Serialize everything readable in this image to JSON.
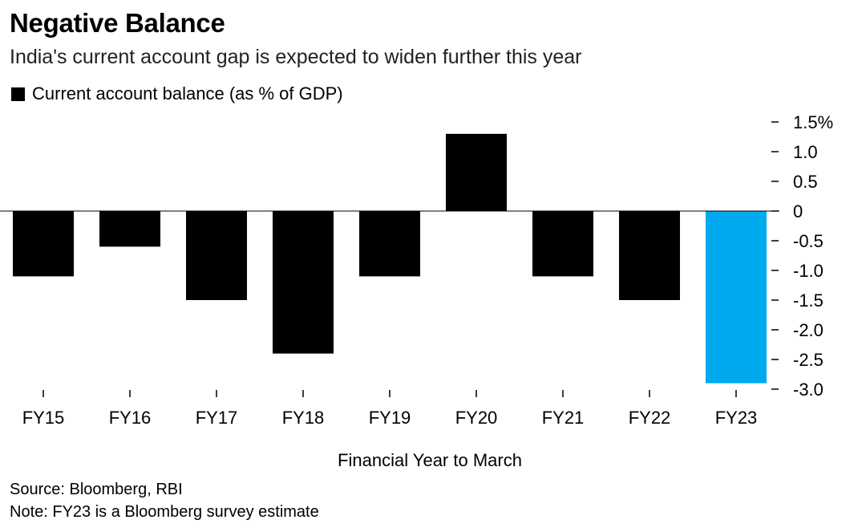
{
  "header": {
    "title": "Negative Balance",
    "subtitle": "India's current account gap is expected to widen further this year"
  },
  "legend": {
    "label": "Current account balance (as % of GDP)",
    "color": "#000000"
  },
  "chart_data": {
    "type": "bar",
    "title": "Negative Balance",
    "subtitle": "India's current account gap is expected to widen further this year",
    "categories": [
      "FY15",
      "FY16",
      "FY17",
      "FY18",
      "FY19",
      "FY20",
      "FY21",
      "FY22",
      "FY23"
    ],
    "values": [
      -1.1,
      -0.6,
      -1.5,
      -2.4,
      -1.1,
      1.3,
      -1.1,
      -1.5,
      -2.9
    ],
    "series": [
      {
        "name": "Current account balance (as % of GDP)",
        "values": [
          -1.1,
          -0.6,
          -1.5,
          -2.4,
          -1.1,
          1.3,
          -1.1,
          -1.5,
          -2.9
        ]
      }
    ],
    "bar_colors": [
      "#000000",
      "#000000",
      "#000000",
      "#000000",
      "#000000",
      "#000000",
      "#000000",
      "#000000",
      "#00aaee"
    ],
    "xlabel": "Financial Year to March",
    "ylabel": "",
    "ylim": [
      -3.0,
      1.5
    ],
    "yticks": [
      1.5,
      1.0,
      0.5,
      0,
      -0.5,
      -1.0,
      -1.5,
      -2.0,
      -2.5,
      -3.0
    ],
    "ytick_labels": [
      "1.5%",
      "1.0",
      "0.5",
      "0",
      "-0.5",
      "-1.0",
      "-1.5",
      "-2.0",
      "-2.5",
      "-3.0"
    ],
    "y_axis_position": "right",
    "grid": false,
    "zero_line": true,
    "legend_position": "top-left"
  },
  "footer": {
    "source": "Source: Bloomberg, RBI",
    "note": "Note: FY23 is a Bloomberg survey estimate"
  }
}
